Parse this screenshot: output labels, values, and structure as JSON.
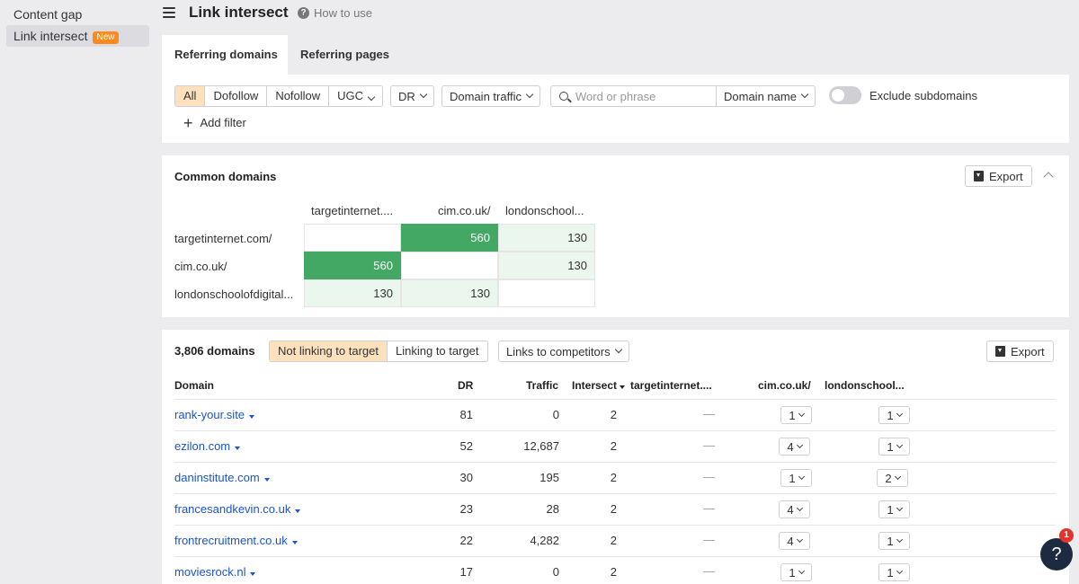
{
  "sidebar": {
    "items": [
      {
        "label": "Content gap"
      },
      {
        "label": "Link intersect",
        "badge": "New"
      }
    ]
  },
  "header": {
    "title": "Link intersect",
    "help_link": "How to use"
  },
  "tabs": [
    {
      "label": "Referring domains",
      "active": true
    },
    {
      "label": "Referring pages",
      "active": false
    }
  ],
  "filters": {
    "link_types": [
      "All",
      "Dofollow",
      "Nofollow"
    ],
    "ugc": "UGC",
    "dr": "DR",
    "domain_traffic": "Domain traffic",
    "search_placeholder": "Word or phrase",
    "search_value": "",
    "domain_name": "Domain name",
    "exclude_subdomains": "Exclude subdomains",
    "add_filter": "Add filter"
  },
  "common_domains": {
    "title": "Common domains",
    "export": "Export",
    "columns": [
      "targetinternet....",
      "cim.co.uk/",
      "londonschool..."
    ],
    "rows": [
      {
        "label": "targetinternet.com/",
        "values": [
          "",
          "560",
          "130"
        ]
      },
      {
        "label": "cim.co.uk/",
        "values": [
          "560",
          "",
          "130"
        ]
      },
      {
        "label": "londonschoolofdigital...",
        "values": [
          "130",
          "130",
          ""
        ]
      }
    ]
  },
  "results": {
    "count": "3,806 domains",
    "views": [
      "Not linking to target",
      "Linking to target"
    ],
    "competitors": "Links to competitors",
    "export": "Export",
    "headers": {
      "domain": "Domain",
      "dr": "DR",
      "traffic": "Traffic",
      "intersect": "Intersect",
      "target": "targetinternet....",
      "cim": "cim.co.uk/",
      "london": "londonschool..."
    },
    "rows": [
      {
        "domain": "rank-your.site",
        "dr": "81",
        "traffic": "0",
        "intersect": "2",
        "target": "—",
        "cim": "1",
        "london": "1"
      },
      {
        "domain": "ezilon.com",
        "dr": "52",
        "traffic": "12,687",
        "intersect": "2",
        "target": "—",
        "cim": "4",
        "london": "1"
      },
      {
        "domain": "daninstitute.com",
        "dr": "30",
        "traffic": "195",
        "intersect": "2",
        "target": "—",
        "cim": "1",
        "london": "2"
      },
      {
        "domain": "francesandkevin.co.uk",
        "dr": "23",
        "traffic": "28",
        "intersect": "2",
        "target": "—",
        "cim": "4",
        "london": "1"
      },
      {
        "domain": "frontrecruitment.co.uk",
        "dr": "22",
        "traffic": "4,282",
        "intersect": "2",
        "target": "—",
        "cim": "4",
        "london": "1"
      },
      {
        "domain": "moviesrock.nl",
        "dr": "17",
        "traffic": "0",
        "intersect": "2",
        "target": "—",
        "cim": "1",
        "london": "1"
      }
    ]
  },
  "help": {
    "icon": "?",
    "badge_count": "1"
  },
  "colors": {
    "accent_orange": "#ff8a1c",
    "matrix_high": "#44a865",
    "matrix_low": "#eaf6ee",
    "link_blue": "#1a55c9",
    "active_segment": "#fde1bd"
  }
}
